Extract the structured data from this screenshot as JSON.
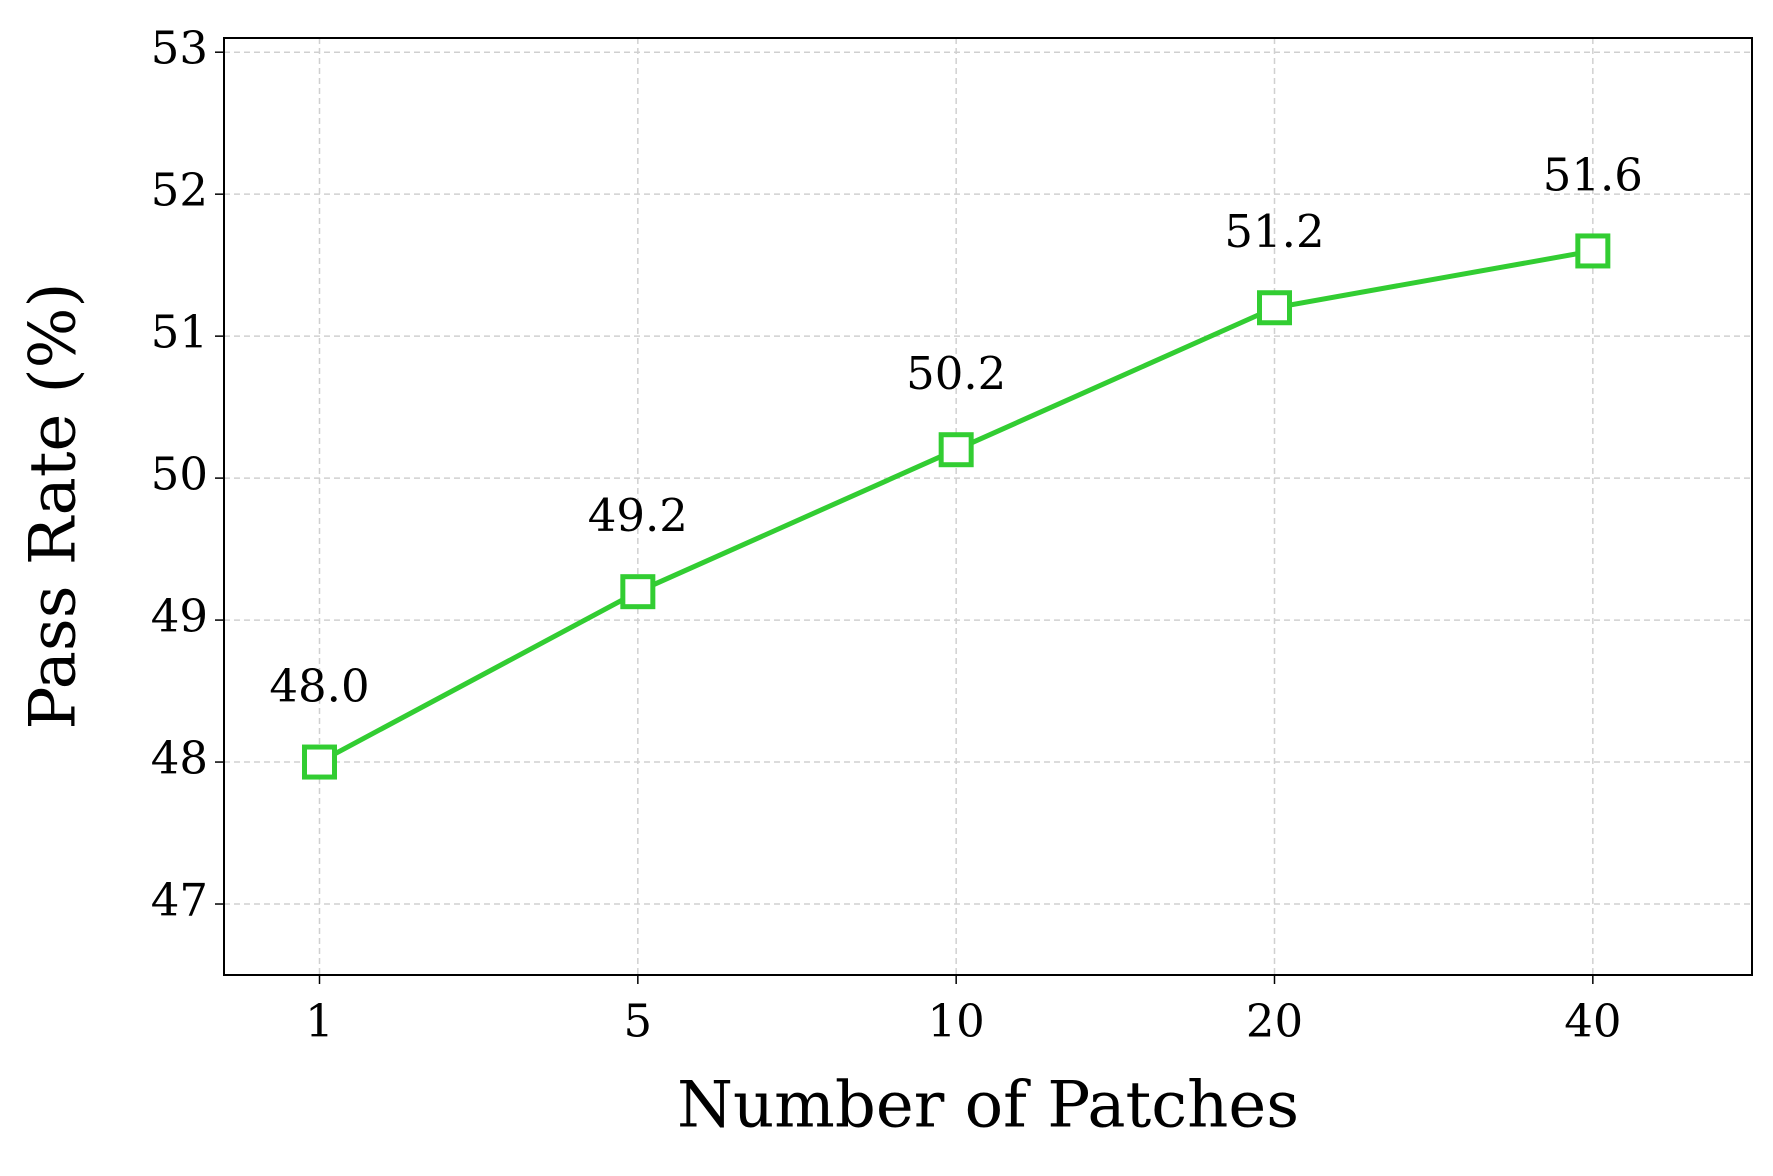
{
  "chart_data": {
    "type": "line",
    "x_label": "Number of Patches",
    "y_label": "Pass Rate (%)",
    "categories": [
      "1",
      "5",
      "10",
      "20",
      "40"
    ],
    "series": [
      {
        "name": null,
        "color": "#32cd32",
        "marker": "square",
        "values": [
          48.0,
          49.2,
          50.2,
          51.2,
          51.6
        ],
        "value_labels": [
          "48.0",
          "49.2",
          "50.2",
          "51.2",
          "51.6"
        ]
      }
    ],
    "ylim": [
      46.5,
      53.1
    ],
    "yticks": [
      47,
      48,
      49,
      50,
      51,
      52,
      53
    ],
    "grid": true
  }
}
